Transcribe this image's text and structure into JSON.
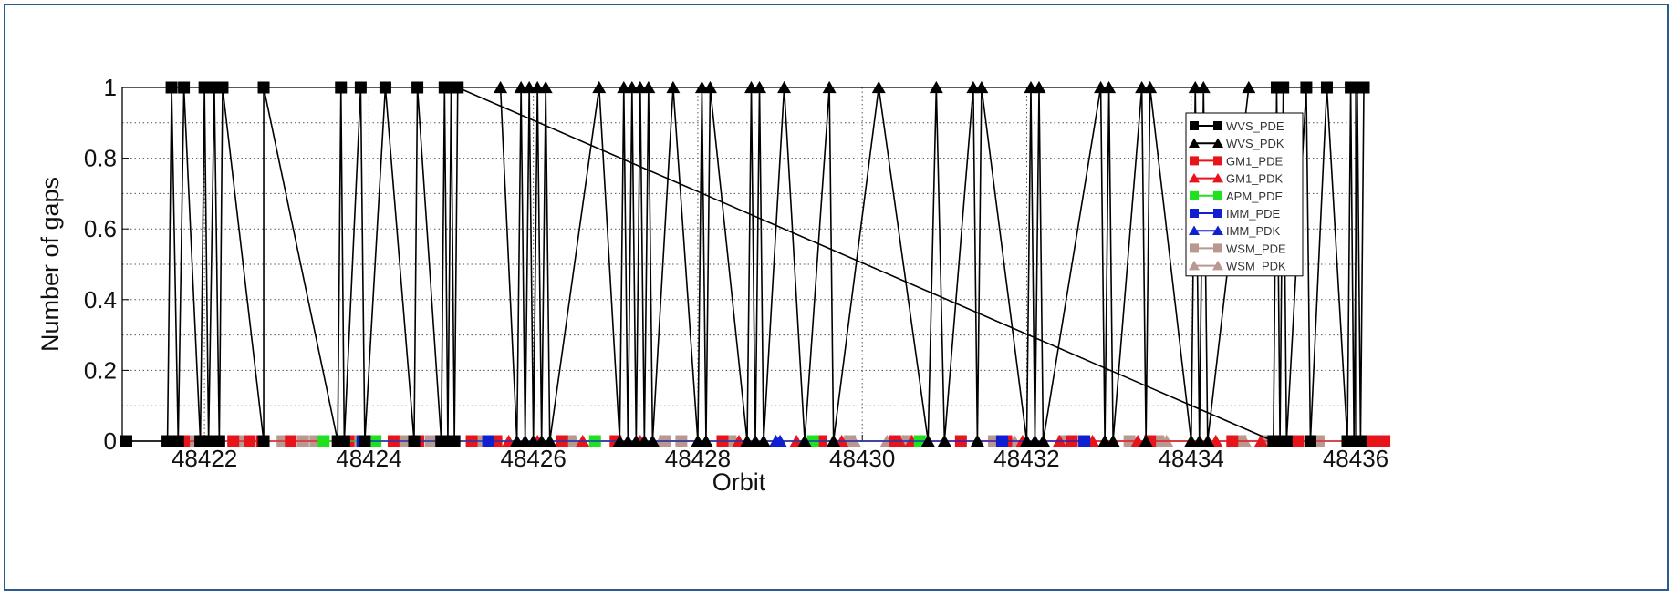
{
  "chart_data": {
    "type": "line",
    "title": "",
    "xlabel": "Orbit",
    "ylabel": "Number of gaps",
    "xlim": [
      48421.0,
      48436.0
    ],
    "ylim": [
      0,
      1
    ],
    "x_ticks": [
      48422,
      48424,
      48426,
      48428,
      48430,
      48432,
      48434,
      48436
    ],
    "y_ticks": [
      0,
      0.2,
      0.4,
      0.6,
      0.8,
      1
    ],
    "y_tick_labels": [
      "0",
      "0.2",
      "0.4",
      "0.6",
      "0.8",
      "1"
    ],
    "grid": true,
    "legend_position": "top-right",
    "series": [
      {
        "name": "WVS_PDE",
        "color": "#000000",
        "marker": "square",
        "x": [
          48421.05,
          48421.55,
          48421.6,
          48421.68,
          48421.75,
          48421.95,
          48422.0,
          48422.05,
          48422.12,
          48422.18,
          48422.22,
          48422.72,
          48422.72,
          48423.62,
          48423.66,
          48423.7,
          48423.9,
          48423.95,
          48424.2,
          48424.55,
          48424.59,
          48424.88,
          48424.92,
          48424.96,
          48425.0,
          48425.04,
          48425.08,
          48435.0,
          48435.04,
          48435.08,
          48435.12,
          48435.16,
          48435.4,
          48435.45,
          48435.65,
          48435.9,
          48435.94,
          48435.98,
          48436.02,
          48436.06,
          48436.1
        ],
        "y": [
          0,
          0,
          1,
          0,
          1,
          0,
          1,
          0,
          1,
          0,
          1,
          0,
          1,
          0,
          1,
          0,
          1,
          0,
          1,
          0,
          1,
          0,
          1,
          0,
          1,
          0,
          1,
          0,
          1,
          0,
          1,
          0,
          1,
          0,
          1,
          0,
          1,
          0,
          1,
          0,
          1
        ]
      },
      {
        "name": "WVS_PDK",
        "color": "#000000",
        "marker": "triangle",
        "x": [
          48425.6,
          48425.8,
          48425.85,
          48425.9,
          48425.95,
          48426.0,
          48426.05,
          48426.1,
          48426.15,
          48426.2,
          48426.8,
          48427.05,
          48427.1,
          48427.15,
          48427.2,
          48427.25,
          48427.3,
          48427.35,
          48427.4,
          48427.45,
          48427.7,
          48428.0,
          48428.05,
          48428.1,
          48428.15,
          48428.6,
          48428.65,
          48428.7,
          48428.75,
          48428.8,
          48429.05,
          48429.3,
          48429.6,
          48429.65,
          48430.2,
          48430.8,
          48430.9,
          48431.0,
          48431.35,
          48431.4,
          48431.45,
          48432.0,
          48432.05,
          48432.1,
          48432.15,
          48432.2,
          48432.9,
          48432.95,
          48433.0,
          48433.05,
          48433.4,
          48433.45,
          48433.5,
          48434.0,
          48434.05,
          48434.1,
          48434.15,
          48434.2,
          48434.7
        ],
        "y": [
          1,
          0,
          1,
          0,
          1,
          0,
          1,
          0,
          1,
          0,
          1,
          0,
          1,
          0,
          1,
          0,
          1,
          0,
          1,
          0,
          1,
          0,
          1,
          0,
          1,
          0,
          1,
          0,
          1,
          0,
          1,
          0,
          1,
          0,
          1,
          0,
          1,
          0,
          1,
          0,
          1,
          0,
          1,
          0,
          1,
          0,
          1,
          0,
          1,
          0,
          1,
          0,
          1,
          0,
          1,
          0,
          1,
          0,
          1
        ]
      },
      {
        "name": "GM1_PDE",
        "color": "#e8141c",
        "marker": "square",
        "x": [
          48421.6,
          48421.75,
          48422.1,
          48422.35,
          48422.55,
          48422.7,
          48423.05,
          48423.75,
          48424.3,
          48424.6,
          48425.25,
          48425.55,
          48426.35,
          48427.0,
          48428.3,
          48429.5,
          48430.4,
          48431.2,
          48431.75,
          48432.55,
          48433.5,
          48434.5,
          48435.3,
          48436.1,
          48436.2,
          48436.35
        ],
        "y": [
          0,
          0,
          0,
          0,
          0,
          0,
          0,
          0,
          0,
          0,
          0,
          0,
          0,
          0,
          0,
          0,
          0,
          0,
          0,
          0,
          0,
          0,
          0,
          0,
          0,
          0
        ]
      },
      {
        "name": "GM1_PDK",
        "color": "#e8141c",
        "marker": "triangle",
        "x": [
          48425.7,
          48426.05,
          48426.6,
          48427.3,
          48428.5,
          48429.2,
          48429.75,
          48430.45,
          48430.6,
          48431.4,
          48431.95,
          48432.4,
          48432.8,
          48433.35,
          48434.3,
          48434.85
        ],
        "y": [
          0,
          0,
          0,
          0,
          0,
          0,
          0,
          0,
          0,
          0,
          0,
          0,
          0,
          0,
          0,
          0
        ]
      },
      {
        "name": "APM_PDE",
        "color": "#20e020",
        "marker": "square",
        "x": [
          48423.45,
          48424.08,
          48426.75,
          48429.4,
          48430.7
        ],
        "y": [
          0,
          0,
          0,
          0,
          0
        ]
      },
      {
        "name": "IMM_PDE",
        "color": "#1020d0",
        "marker": "square",
        "x": [
          48423.92,
          48425.45,
          48431.7,
          48432.7
        ],
        "y": [
          0,
          0,
          0,
          0
        ]
      },
      {
        "name": "IMM_PDK",
        "color": "#1020d0",
        "marker": "triangle",
        "x": [
          48428.95,
          48429.0
        ],
        "y": [
          0,
          0
        ]
      },
      {
        "name": "WSM_PDE",
        "color": "#b89890",
        "marker": "square",
        "x": [
          48421.85,
          48422.45,
          48422.95,
          48423.2,
          48423.35,
          48423.85,
          48424.45,
          48424.75,
          48425.35,
          48426.45,
          48427.6,
          48427.8,
          48428.4,
          48429.85,
          48430.55,
          48431.6,
          48432.45,
          48433.25,
          48433.6,
          48434.6,
          48434.9,
          48435.55,
          48436.25
        ],
        "y": [
          0,
          0,
          0,
          0,
          0,
          0,
          0,
          0,
          0,
          0,
          0,
          0,
          0,
          0,
          0,
          0,
          0,
          0,
          0,
          0,
          0,
          0,
          0
        ]
      },
      {
        "name": "WSM_PDK",
        "color": "#b89890",
        "marker": "triangle",
        "x": [
          48426.5,
          48427.55,
          48429.9,
          48430.3,
          48430.5,
          48431.85,
          48433.7,
          48434.65
        ],
        "y": [
          0,
          0,
          0,
          0,
          0,
          0,
          0,
          0
        ]
      }
    ]
  }
}
